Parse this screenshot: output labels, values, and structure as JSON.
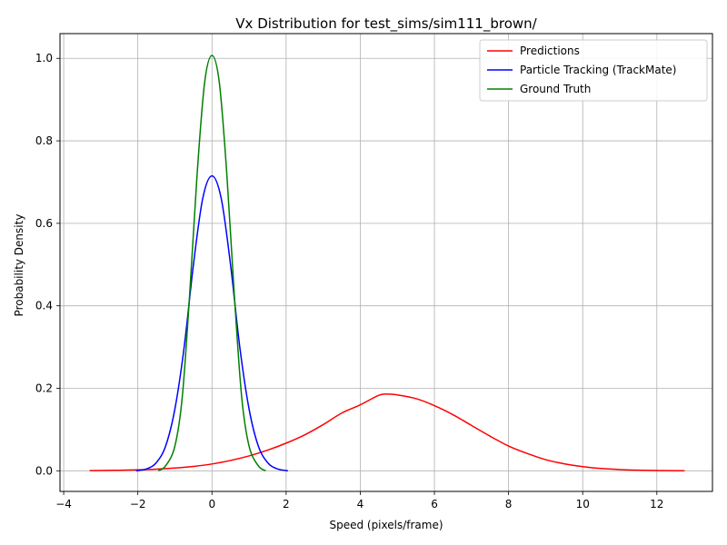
{
  "chart_data": {
    "type": "line",
    "title": "Vx Distribution for test_sims/sim111_brown/",
    "xlabel": "Speed (pixels/frame)",
    "ylabel": "Probability Density",
    "xlim": [
      -4.1,
      13.5
    ],
    "ylim": [
      -0.05,
      1.06
    ],
    "xticks": [
      -4,
      -2,
      0,
      2,
      4,
      6,
      8,
      10,
      12
    ],
    "yticks": [
      0.0,
      0.2,
      0.4,
      0.6,
      0.8,
      1.0
    ],
    "xtick_labels": [
      "−4",
      "−2",
      "0",
      "2",
      "4",
      "6",
      "8",
      "10",
      "12"
    ],
    "ytick_labels": [
      "0.0",
      "0.2",
      "0.4",
      "0.6",
      "0.8",
      "1.0"
    ],
    "grid": true,
    "legend_position": "top-right",
    "series": [
      {
        "name": "Predictions",
        "color": "#ff0000",
        "x": [
          -3.3,
          -2.5,
          -2.0,
          -1.5,
          -1.0,
          -0.5,
          0.0,
          0.5,
          1.0,
          1.5,
          2.0,
          2.5,
          3.0,
          3.5,
          4.0,
          4.5,
          4.75,
          5.0,
          5.5,
          6.0,
          6.5,
          7.0,
          7.5,
          8.0,
          8.5,
          9.0,
          9.5,
          10.0,
          10.5,
          11.0,
          11.5,
          12.0,
          12.75
        ],
        "y": [
          0.0005,
          0.0013,
          0.0023,
          0.004,
          0.0066,
          0.0106,
          0.0165,
          0.025,
          0.036,
          0.05,
          0.067,
          0.087,
          0.112,
          0.14,
          0.16,
          0.183,
          0.186,
          0.184,
          0.175,
          0.158,
          0.136,
          0.11,
          0.084,
          0.06,
          0.042,
          0.027,
          0.017,
          0.01,
          0.0055,
          0.003,
          0.0015,
          0.0007,
          0.0002
        ]
      },
      {
        "name": "Particle Tracking (TrackMate)",
        "color": "#0000ff",
        "x": [
          -2.05,
          -1.75,
          -1.5,
          -1.25,
          -1.0,
          -0.75,
          -0.5,
          -0.25,
          0.0,
          0.25,
          0.5,
          0.75,
          1.0,
          1.25,
          1.5,
          1.75,
          2.05
        ],
        "y": [
          0.0,
          0.005,
          0.02,
          0.06,
          0.15,
          0.3,
          0.5,
          0.66,
          0.715,
          0.66,
          0.5,
          0.3,
          0.15,
          0.06,
          0.02,
          0.005,
          0.0
        ]
      },
      {
        "name": "Ground Truth",
        "color": "#008000",
        "x": [
          -1.45,
          -1.25,
          -1.0,
          -0.8,
          -0.6,
          -0.4,
          -0.2,
          0.0,
          0.2,
          0.4,
          0.6,
          0.8,
          1.0,
          1.25,
          1.45
        ],
        "y": [
          0.0,
          0.012,
          0.06,
          0.18,
          0.43,
          0.72,
          0.94,
          1.007,
          0.94,
          0.72,
          0.43,
          0.18,
          0.06,
          0.012,
          0.0
        ]
      }
    ]
  }
}
